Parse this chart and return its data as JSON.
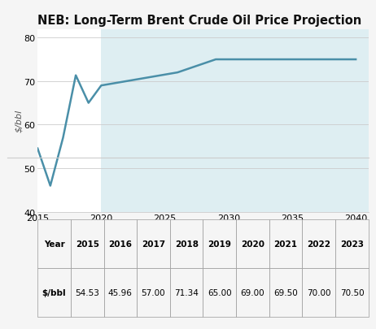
{
  "title": "NEB: Long-Term Brent Crude Oil Price Projection",
  "ylabel": "$/bbl",
  "bg_color": "#f5f5f5",
  "chart_bg": "#ffffff",
  "forecast_bg": "#deeef2",
  "line_color": "#4a8fa8",
  "line_width": 1.8,
  "xlim": [
    2015,
    2041
  ],
  "ylim": [
    40,
    82
  ],
  "yticks": [
    40,
    50,
    60,
    70,
    80
  ],
  "xticks": [
    2015,
    2020,
    2025,
    2030,
    2035,
    2040
  ],
  "forecast_start": 2020,
  "all_years": [
    2015,
    2016,
    2017,
    2018,
    2019,
    2020,
    2021,
    2022,
    2023,
    2024,
    2025,
    2026,
    2027,
    2028,
    2029,
    2030,
    2031,
    2032,
    2033,
    2034,
    2035,
    2036,
    2037,
    2038,
    2039,
    2040
  ],
  "all_values": [
    54.53,
    45.96,
    57.0,
    71.34,
    65.0,
    69.0,
    69.5,
    70.0,
    70.5,
    71.0,
    71.5,
    72.0,
    73.0,
    74.0,
    75.0,
    75.0,
    75.0,
    75.0,
    75.0,
    75.0,
    75.0,
    75.0,
    75.0,
    75.0,
    75.0,
    75.0
  ],
  "table_headers": [
    "Year",
    "2015",
    "2016",
    "2017",
    "2018",
    "2019",
    "2020",
    "2021",
    "2022",
    "2023"
  ],
  "table_values": [
    "$/bbl",
    "54.53",
    "45.96",
    "57.00",
    "71.34",
    "65.00",
    "69.00",
    "69.50",
    "70.00",
    "70.50"
  ],
  "title_fontsize": 10.5,
  "ylabel_fontsize": 8,
  "tick_fontsize": 8,
  "table_fontsize": 7.5,
  "grid_color": "#cccccc",
  "separator_color": "#cccccc"
}
